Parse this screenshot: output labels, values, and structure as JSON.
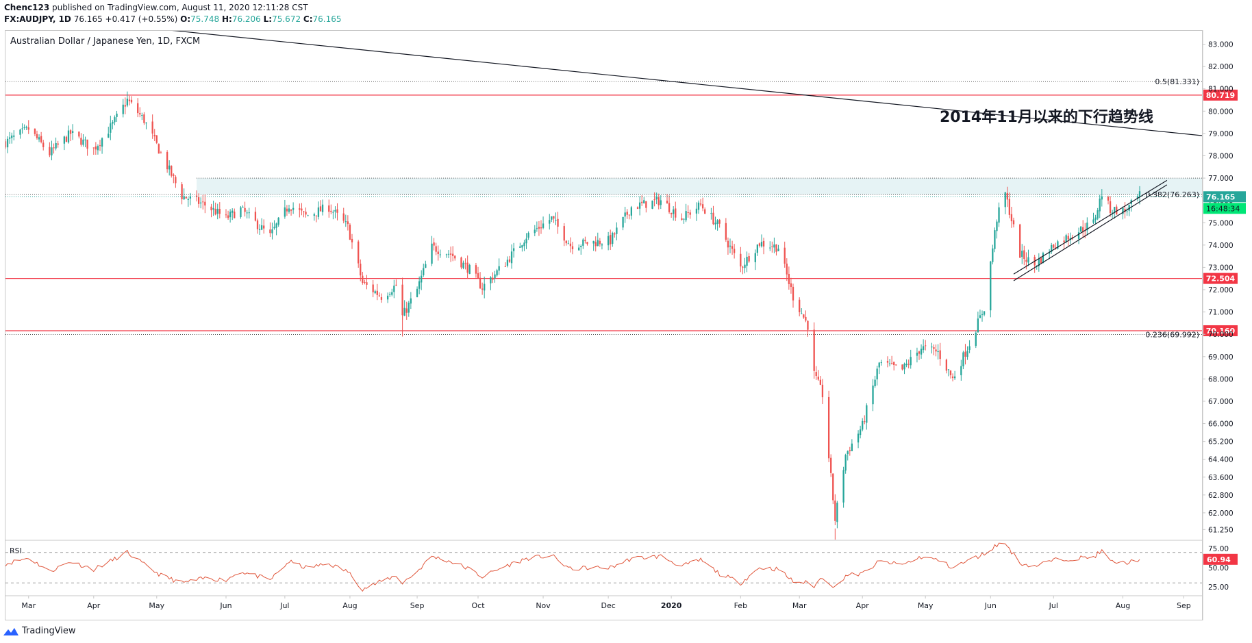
{
  "header": {
    "publisher": "Chenc123",
    "published_text": "published on TradingView.com, August 11, 2020 12:11:28 CST",
    "symbol": "FX:AUDJPY, 1D",
    "last": "76.165",
    "change": "+0.417 (+0.55%)",
    "o_label": "O:",
    "o_value": "75.748",
    "h_label": "H:",
    "h_value": "76.206",
    "l_label": "L:",
    "l_value": "75.672",
    "c_label": "C:",
    "c_value": "76.165"
  },
  "footer": {
    "brand": "TradingView"
  },
  "chart_data": {
    "type": "candlestick",
    "title": "Australian Dollar / Japanese Yen, 1D, FXCM",
    "y_axis": {
      "ylim": [
        60.8,
        83.6
      ],
      "ticks": [
        83.0,
        82.0,
        81.0,
        80.0,
        79.0,
        78.0,
        77.0,
        76.0,
        75.0,
        74.0,
        73.0,
        72.0,
        71.0,
        70.0,
        69.0,
        68.0,
        67.0,
        66.0,
        65.2,
        64.4,
        63.6,
        62.8,
        62.0,
        61.25
      ],
      "tick_labels": [
        "83.000",
        "82.000",
        "81.000",
        "80.000",
        "79.000",
        "78.000",
        "77.000",
        "76.000",
        "75.000",
        "74.000",
        "73.000",
        "72.000",
        "71.000",
        "70.000",
        "69.000",
        "68.000",
        "67.000",
        "66.000",
        "65.200",
        "64.400",
        "63.600",
        "62.800",
        "62.000",
        "61.250"
      ]
    },
    "x_axis": {
      "date_start": "2019-02-18",
      "date_end": "2020-09-10",
      "months": [
        {
          "label": "Mar",
          "date": "2019-03-01"
        },
        {
          "label": "Apr",
          "date": "2019-04-01"
        },
        {
          "label": "May",
          "date": "2019-05-01"
        },
        {
          "label": "Jun",
          "date": "2019-06-03"
        },
        {
          "label": "Jul",
          "date": "2019-07-01"
        },
        {
          "label": "Aug",
          "date": "2019-08-01"
        },
        {
          "label": "Sep",
          "date": "2019-09-02"
        },
        {
          "label": "Oct",
          "date": "2019-10-01"
        },
        {
          "label": "Nov",
          "date": "2019-11-01"
        },
        {
          "label": "Dec",
          "date": "2019-12-02"
        },
        {
          "label": "2020",
          "date": "2020-01-01"
        },
        {
          "label": "Feb",
          "date": "2020-02-03"
        },
        {
          "label": "Mar",
          "date": "2020-03-02"
        },
        {
          "label": "Apr",
          "date": "2020-04-01"
        },
        {
          "label": "May",
          "date": "2020-05-01"
        },
        {
          "label": "Jun",
          "date": "2020-06-01"
        },
        {
          "label": "Jul",
          "date": "2020-07-01"
        },
        {
          "label": "Aug",
          "date": "2020-08-03"
        },
        {
          "label": "Sep",
          "date": "2020-09-01"
        }
      ]
    },
    "close_path": [
      [
        "2019-02-18",
        78.6
      ],
      [
        "2019-03-01",
        79.2
      ],
      [
        "2019-03-11",
        78.1
      ],
      [
        "2019-03-21",
        79.0
      ],
      [
        "2019-04-01",
        78.3
      ],
      [
        "2019-04-10",
        79.4
      ],
      [
        "2019-04-17",
        80.5
      ],
      [
        "2019-04-25",
        79.6
      ],
      [
        "2019-05-03",
        78.1
      ],
      [
        "2019-05-13",
        76.2
      ],
      [
        "2019-05-24",
        75.8
      ],
      [
        "2019-06-03",
        75.2
      ],
      [
        "2019-06-10",
        75.6
      ],
      [
        "2019-06-24",
        74.4
      ],
      [
        "2019-07-03",
        75.8
      ],
      [
        "2019-07-11",
        75.3
      ],
      [
        "2019-07-22",
        75.7
      ],
      [
        "2019-07-31",
        74.8
      ],
      [
        "2019-08-07",
        72.3
      ],
      [
        "2019-08-16",
        71.7
      ],
      [
        "2019-08-23",
        72.2
      ],
      [
        "2019-08-26",
        70.8
      ],
      [
        "2019-09-02",
        72.0
      ],
      [
        "2019-09-09",
        73.9
      ],
      [
        "2019-09-18",
        73.6
      ],
      [
        "2019-09-27",
        72.9
      ],
      [
        "2019-10-03",
        72.1
      ],
      [
        "2019-10-14",
        73.2
      ],
      [
        "2019-10-24",
        74.4
      ],
      [
        "2019-11-05",
        75.2
      ],
      [
        "2019-11-14",
        74.0
      ],
      [
        "2019-11-22",
        74.1
      ],
      [
        "2019-12-03",
        74.2
      ],
      [
        "2019-12-13",
        75.7
      ],
      [
        "2019-12-27",
        76.0
      ],
      [
        "2020-01-06",
        75.2
      ],
      [
        "2020-01-15",
        75.8
      ],
      [
        "2020-01-24",
        74.8
      ],
      [
        "2020-02-03",
        73.0
      ],
      [
        "2020-02-12",
        74.1
      ],
      [
        "2020-02-21",
        73.9
      ],
      [
        "2020-02-28",
        71.7
      ],
      [
        "2020-03-06",
        70.4
      ],
      [
        "2020-03-09",
        68.2
      ],
      [
        "2020-03-13",
        67.3
      ],
      [
        "2020-03-19",
        61.7
      ],
      [
        "2020-03-24",
        64.6
      ],
      [
        "2020-04-01",
        65.9
      ],
      [
        "2020-04-09",
        68.7
      ],
      [
        "2020-04-20",
        68.4
      ],
      [
        "2020-04-29",
        69.4
      ],
      [
        "2020-05-07",
        69.2
      ],
      [
        "2020-05-14",
        68.0
      ],
      [
        "2020-05-22",
        69.6
      ],
      [
        "2020-05-29",
        71.2
      ],
      [
        "2020-06-04",
        75.2
      ],
      [
        "2020-06-08",
        76.3
      ],
      [
        "2020-06-15",
        73.6
      ],
      [
        "2020-06-22",
        73.1
      ],
      [
        "2020-07-01",
        74.0
      ],
      [
        "2020-07-10",
        74.5
      ],
      [
        "2020-07-20",
        75.0
      ],
      [
        "2020-07-24",
        76.3
      ],
      [
        "2020-07-28",
        75.6
      ],
      [
        "2020-08-04",
        75.5
      ],
      [
        "2020-08-11",
        76.2
      ]
    ],
    "lines": [
      {
        "name": "0.5(81.331)",
        "kind": "fib",
        "price": 81.331,
        "label": "0.5(81.331)"
      },
      {
        "name": "0.382(76.263)",
        "kind": "fib",
        "price": 76.263,
        "label": "0.382(76.263)"
      },
      {
        "name": "0.236(69.992)",
        "kind": "fib",
        "price": 69.992,
        "label": "0.236(69.992)"
      },
      {
        "name": "80.719",
        "kind": "horizontal",
        "price": 80.719,
        "label": "80.719",
        "color": "#f23645"
      },
      {
        "name": "72.504",
        "kind": "horizontal",
        "price": 72.504,
        "label": "72.504",
        "color": "#f23645"
      },
      {
        "name": "70.160",
        "kind": "horizontal",
        "price": 70.16,
        "label": "70.160",
        "color": "#f23645"
      }
    ],
    "resistance_zone": {
      "from": 76.263,
      "to": 77.0,
      "start_date": "2019-05-20"
    },
    "downtrend_line": {
      "annotation": "2014年11月以来的下行趋势线",
      "p1": [
        "2019-04-09",
        83.9
      ],
      "p2": [
        "2020-09-10",
        78.9
      ]
    },
    "uptrend_channel": [
      {
        "p1": [
          "2020-06-12",
          72.7
        ],
        "p2": [
          "2020-08-24",
          76.9
        ]
      },
      {
        "p1": [
          "2020-06-12",
          72.4
        ],
        "p2": [
          "2020-08-24",
          76.7
        ]
      }
    ],
    "last_price": {
      "value": 76.165,
      "label": "76.165",
      "countdown": "16:48:34",
      "color": "#26a69a"
    },
    "rsi": {
      "label": "RSI",
      "ylim": [
        15,
        85
      ],
      "levels": [
        70,
        30
      ],
      "ticks": [
        75,
        50,
        25
      ],
      "tick_labels": [
        "75.00",
        "50.00",
        "25.00"
      ],
      "current": 60.94,
      "current_label": "60.94",
      "path": [
        [
          "2019-02-18",
          55
        ],
        [
          "2019-03-01",
          63
        ],
        [
          "2019-03-11",
          45
        ],
        [
          "2019-03-21",
          58
        ],
        [
          "2019-04-01",
          48
        ],
        [
          "2019-04-10",
          60
        ],
        [
          "2019-04-17",
          70
        ],
        [
          "2019-04-25",
          54
        ],
        [
          "2019-05-03",
          40
        ],
        [
          "2019-05-13",
          30
        ],
        [
          "2019-05-24",
          36
        ],
        [
          "2019-06-03",
          34
        ],
        [
          "2019-06-10",
          45
        ],
        [
          "2019-06-24",
          34
        ],
        [
          "2019-07-03",
          58
        ],
        [
          "2019-07-11",
          50
        ],
        [
          "2019-07-22",
          55
        ],
        [
          "2019-07-31",
          45
        ],
        [
          "2019-08-07",
          22
        ],
        [
          "2019-08-16",
          32
        ],
        [
          "2019-08-23",
          40
        ],
        [
          "2019-08-26",
          30
        ],
        [
          "2019-09-02",
          45
        ],
        [
          "2019-09-09",
          65
        ],
        [
          "2019-09-18",
          58
        ],
        [
          "2019-09-27",
          48
        ],
        [
          "2019-10-03",
          38
        ],
        [
          "2019-10-14",
          52
        ],
        [
          "2019-10-24",
          62
        ],
        [
          "2019-11-05",
          66
        ],
        [
          "2019-11-14",
          48
        ],
        [
          "2019-11-22",
          50
        ],
        [
          "2019-12-03",
          50
        ],
        [
          "2019-12-13",
          62
        ],
        [
          "2019-12-27",
          65
        ],
        [
          "2020-01-06",
          52
        ],
        [
          "2020-01-15",
          60
        ],
        [
          "2020-01-24",
          42
        ],
        [
          "2020-02-03",
          30
        ],
        [
          "2020-02-12",
          50
        ],
        [
          "2020-02-21",
          48
        ],
        [
          "2020-02-28",
          32
        ],
        [
          "2020-03-06",
          30
        ],
        [
          "2020-03-09",
          26
        ],
        [
          "2020-03-13",
          38
        ],
        [
          "2020-03-19",
          24
        ],
        [
          "2020-03-24",
          40
        ],
        [
          "2020-04-01",
          42
        ],
        [
          "2020-04-09",
          58
        ],
        [
          "2020-04-20",
          54
        ],
        [
          "2020-04-29",
          64
        ],
        [
          "2020-05-07",
          60
        ],
        [
          "2020-05-14",
          50
        ],
        [
          "2020-05-22",
          60
        ],
        [
          "2020-05-29",
          68
        ],
        [
          "2020-06-04",
          80
        ],
        [
          "2020-06-08",
          82
        ],
        [
          "2020-06-15",
          56
        ],
        [
          "2020-06-22",
          52
        ],
        [
          "2020-07-01",
          60
        ],
        [
          "2020-07-10",
          62
        ],
        [
          "2020-07-20",
          64
        ],
        [
          "2020-07-24",
          72
        ],
        [
          "2020-07-28",
          58
        ],
        [
          "2020-08-04",
          56
        ],
        [
          "2020-08-11",
          61
        ]
      ]
    },
    "colors": {
      "up": "#26a69a",
      "down": "#ef5350",
      "rsi": "#e0573c",
      "line": "#131722",
      "zone": "#d6ebef"
    }
  }
}
